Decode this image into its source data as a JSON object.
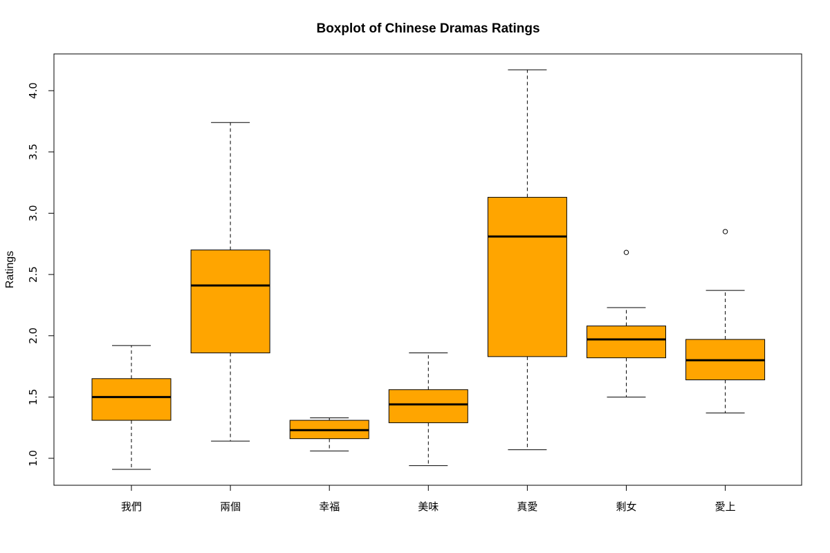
{
  "chart_data": {
    "type": "boxplot",
    "title": "Boxplot of Chinese Dramas Ratings",
    "xlabel": "",
    "ylabel": "Ratings",
    "ylim": [
      0.78,
      4.3
    ],
    "yticks": [
      "1.0",
      "1.5",
      "2.0",
      "2.5",
      "3.0",
      "3.5",
      "4.0"
    ],
    "grid": false,
    "box_color": "#FFA500",
    "categories": [
      "我們",
      "兩個",
      "幸福",
      "美味",
      "真愛",
      "剩女",
      "愛上"
    ],
    "boxes": [
      {
        "name": "我們",
        "min": 0.91,
        "q1": 1.31,
        "median": 1.5,
        "q3": 1.65,
        "max": 1.92,
        "outliers": []
      },
      {
        "name": "兩個",
        "min": 1.14,
        "q1": 1.86,
        "median": 2.41,
        "q3": 2.7,
        "max": 3.74,
        "outliers": []
      },
      {
        "name": "幸福",
        "min": 1.06,
        "q1": 1.16,
        "median": 1.23,
        "q3": 1.31,
        "max": 1.33,
        "outliers": []
      },
      {
        "name": "美味",
        "min": 0.94,
        "q1": 1.29,
        "median": 1.44,
        "q3": 1.56,
        "max": 1.86,
        "outliers": []
      },
      {
        "name": "真愛",
        "min": 1.07,
        "q1": 1.83,
        "median": 2.81,
        "q3": 3.13,
        "max": 4.17,
        "outliers": []
      },
      {
        "name": "剩女",
        "min": 1.5,
        "q1": 1.82,
        "median": 1.97,
        "q3": 2.08,
        "max": 2.23,
        "outliers": [
          2.68
        ]
      },
      {
        "name": "愛上",
        "min": 1.37,
        "q1": 1.64,
        "median": 1.8,
        "q3": 1.97,
        "max": 2.37,
        "outliers": [
          2.85
        ]
      }
    ]
  }
}
